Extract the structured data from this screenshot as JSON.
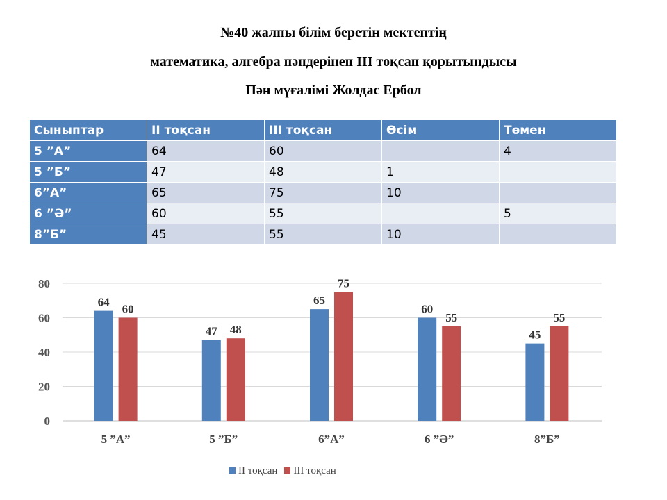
{
  "titles": [
    "№40 жалпы білім беретін мектептің",
    "математика, алгебра пәндерінен  III тоқсан қорытындысы",
    "Пән мұғалімі Жолдас Ербол"
  ],
  "table": {
    "headers": [
      "Сыныптар",
      "II тоқсан",
      "III тоқсан",
      "Өсім",
      "Төмен"
    ],
    "rows": [
      [
        "5 ”А”",
        "64",
        "60",
        "",
        "4"
      ],
      [
        "5 ”Б”",
        "47",
        "48",
        "1",
        ""
      ],
      [
        "6”А”",
        "65",
        "75",
        "10",
        ""
      ],
      [
        "6 ”Ә”",
        "60",
        "55",
        "",
        "5"
      ],
      [
        "8”Б”",
        "45",
        "55",
        "10",
        ""
      ]
    ]
  },
  "chart_data": {
    "type": "bar",
    "categories": [
      "5 ”А”",
      "5 ”Б”",
      "6”А”",
      "6 ”Ә”",
      "8”Б”"
    ],
    "series": [
      {
        "name": "II  тоқсан",
        "values": [
          64,
          47,
          65,
          60,
          45
        ],
        "color": "#4f81bd"
      },
      {
        "name": "III тоқсан",
        "values": [
          60,
          48,
          75,
          55,
          55
        ],
        "color": "#c0504d"
      }
    ],
    "ylim": [
      0,
      80
    ],
    "yticks": [
      0,
      20,
      40,
      60,
      80
    ],
    "grid": true,
    "legend": "bottom"
  }
}
